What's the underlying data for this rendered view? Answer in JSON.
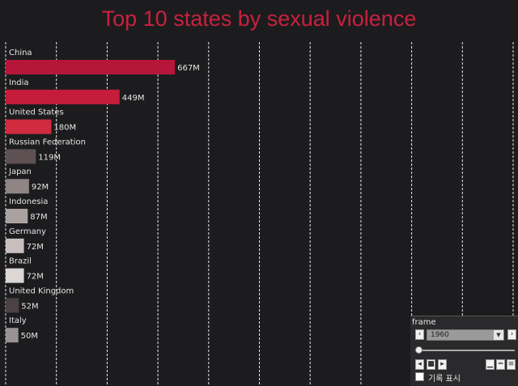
{
  "chart_data": {
    "type": "bar",
    "orientation": "horizontal",
    "title": "Top 10 states by sexual violence",
    "categories": [
      "China",
      "India",
      "United States",
      "Russian Federation",
      "Japan",
      "Indonesia",
      "Germany",
      "Brazil",
      "United Kingdom",
      "Italy"
    ],
    "values": [
      667,
      449,
      180,
      119,
      92,
      87,
      72,
      72,
      52,
      50
    ],
    "value_labels": [
      "667M",
      "449M",
      "180M",
      "119M",
      "92M",
      "87M",
      "72M",
      "72M",
      "52M",
      "50M"
    ],
    "colors": [
      "#b5163a",
      "#c51c3c",
      "#d02b3f",
      "#5e5153",
      "#8e8584",
      "#aaa2a1",
      "#c9bfbe",
      "#dcd6d4",
      "#4a4244",
      "#9a9393"
    ],
    "xlim": [
      0,
      2000
    ],
    "grid": true,
    "legend": "none"
  },
  "controls": {
    "frame_label": "frame",
    "selected_frame": "1960",
    "show_history_label": "기록 표시",
    "prev_icon": "chevron-left-icon",
    "next_icon": "chevron-right-icon",
    "dropdown_icon": "chevron-down-icon"
  }
}
